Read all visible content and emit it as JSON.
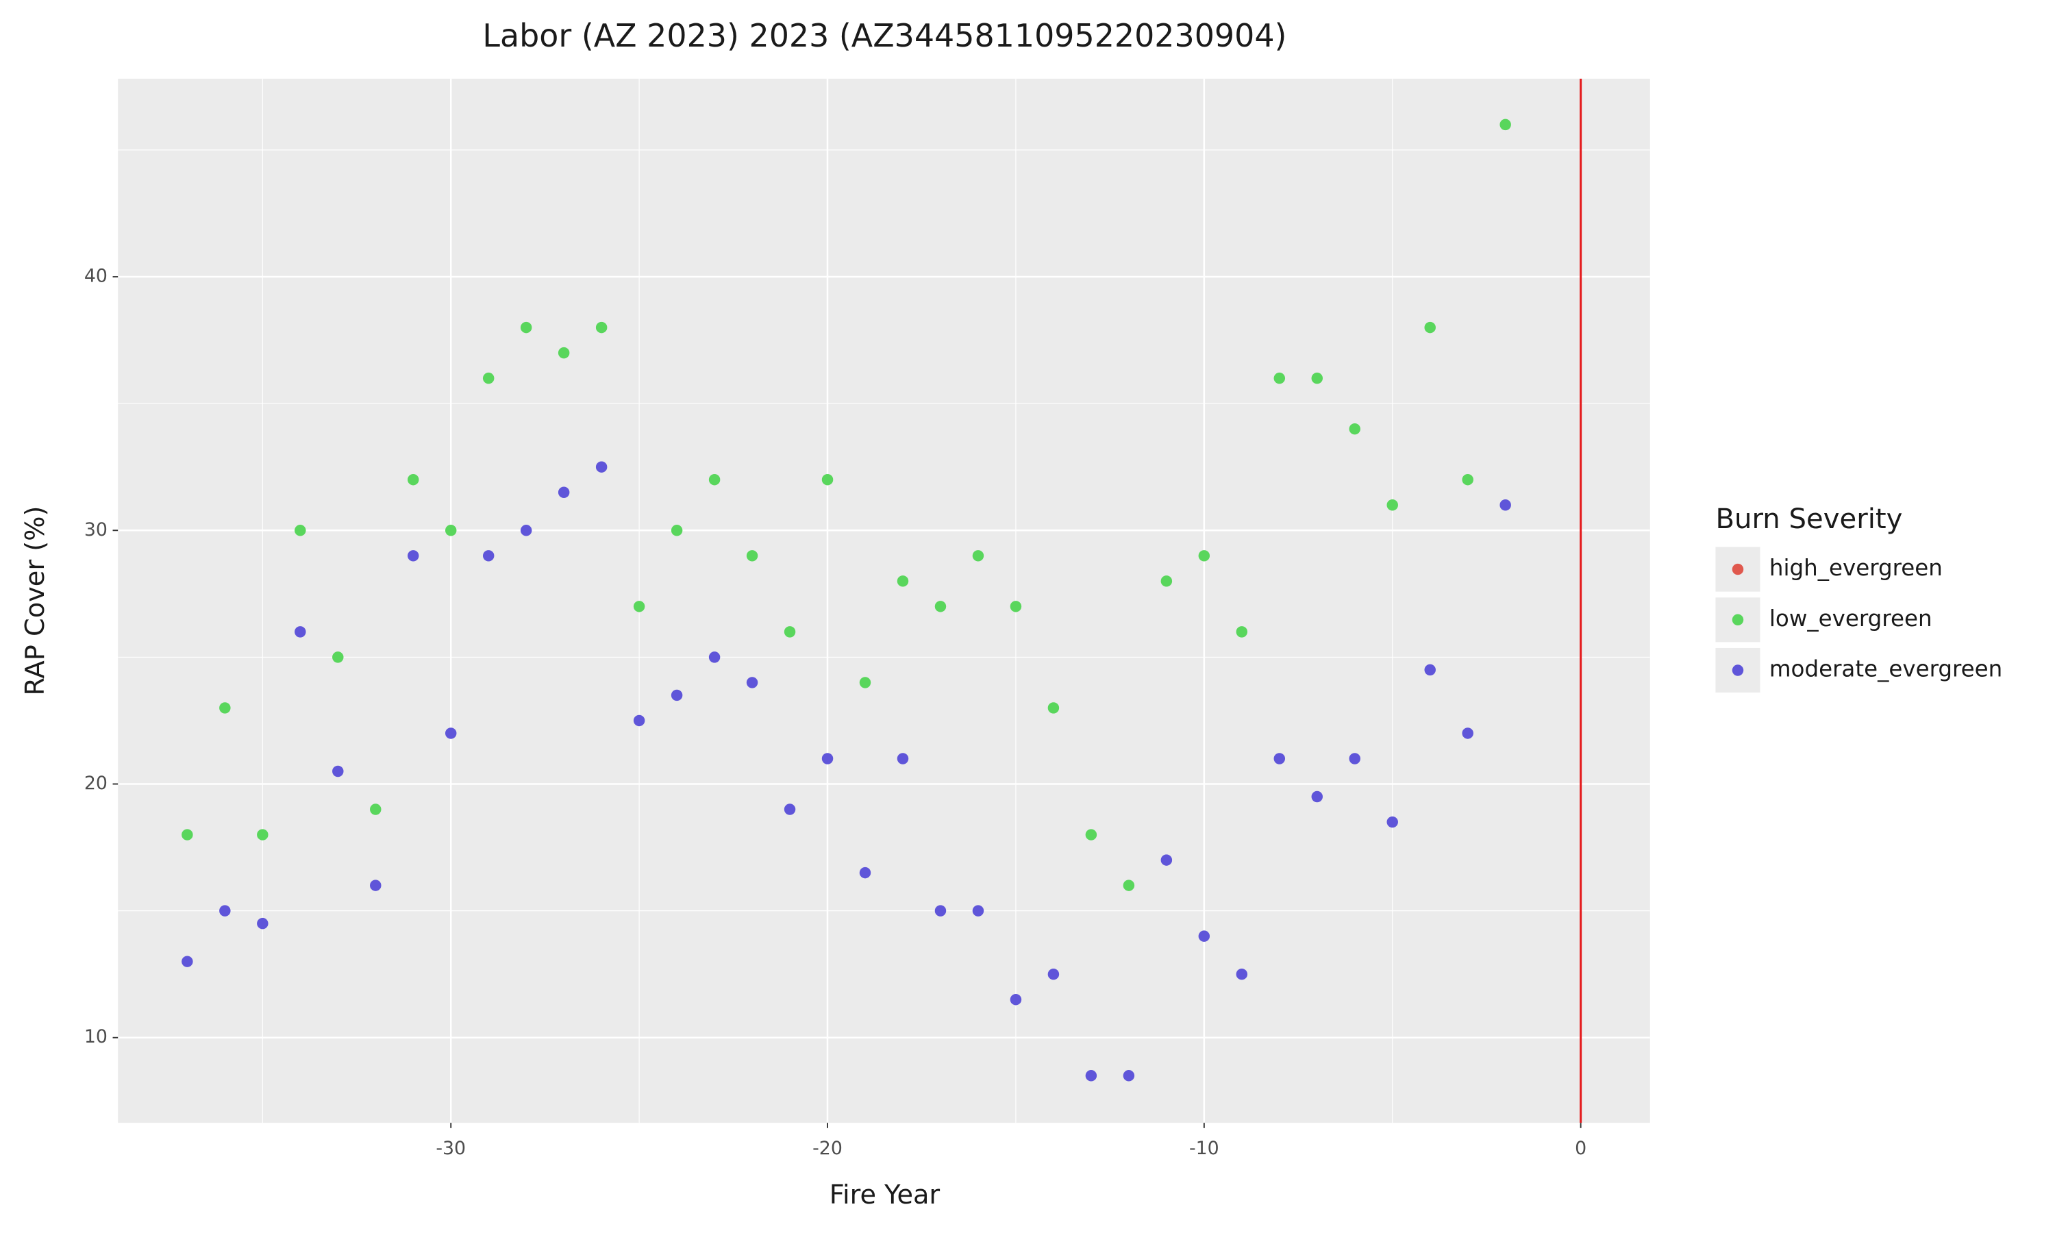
{
  "chart_data": {
    "type": "scatter",
    "title": "Labor (AZ 2023) 2023 (AZ3445811095220230904)",
    "x_label": "Fire Year",
    "y_label": "RAP Cover (%)",
    "legend_title": "Burn Severity",
    "legend_position": "right",
    "xlim": [
      -38.84,
      1.84
    ],
    "ylim": [
      6.64,
      47.81
    ],
    "xticks": [
      -30,
      -20,
      -10,
      0
    ],
    "yticks": [
      10,
      20,
      30,
      40
    ],
    "grid": true,
    "vline": {
      "x": 0,
      "color": "#e41a1c"
    },
    "series": [
      {
        "name": "high_evergreen",
        "color": "#e0584d",
        "x": [],
        "values": []
      },
      {
        "name": "low_evergreen",
        "color": "#59d65c",
        "x": [
          -37,
          -36,
          -35,
          -34,
          -33,
          -32,
          -31,
          -30,
          -29,
          -28,
          -27,
          -26,
          -25,
          -24,
          -23,
          -22,
          -21,
          -20,
          -19,
          -18,
          -17,
          -16,
          -15,
          -14,
          -13,
          -12,
          -11,
          -10,
          -9,
          -8,
          -7,
          -6,
          -5,
          -4,
          -3,
          -2
        ],
        "values": [
          18,
          23,
          18,
          30,
          25,
          19,
          32,
          30,
          36,
          38,
          37,
          38,
          27,
          30,
          32,
          29,
          26,
          32,
          24,
          28,
          27,
          29,
          27,
          23,
          18,
          16,
          28,
          29,
          26,
          36,
          36,
          34,
          31,
          38,
          32,
          46
        ]
      },
      {
        "name": "moderate_evergreen",
        "color": "#5f55d9",
        "x": [
          -37,
          -36,
          -35,
          -34,
          -33,
          -32,
          -31,
          -30,
          -29,
          -28,
          -27,
          -26,
          -25,
          -24,
          -23,
          -22,
          -21,
          -20,
          -19,
          -18,
          -17,
          -16,
          -15,
          -14,
          -13,
          -12,
          -11,
          -10,
          -9,
          -8,
          -7,
          -6,
          -5,
          -4,
          -3,
          -2
        ],
        "values": [
          13,
          15,
          14.5,
          26,
          20.5,
          16,
          29,
          22,
          29,
          30,
          31.5,
          32.5,
          22.5,
          23.5,
          25,
          24,
          19,
          21,
          16.5,
          21,
          15,
          15,
          11.5,
          12.5,
          8.5,
          8.5,
          17,
          14,
          12.5,
          21,
          19.5,
          21,
          18.5,
          24.5,
          22,
          31
        ]
      }
    ]
  }
}
